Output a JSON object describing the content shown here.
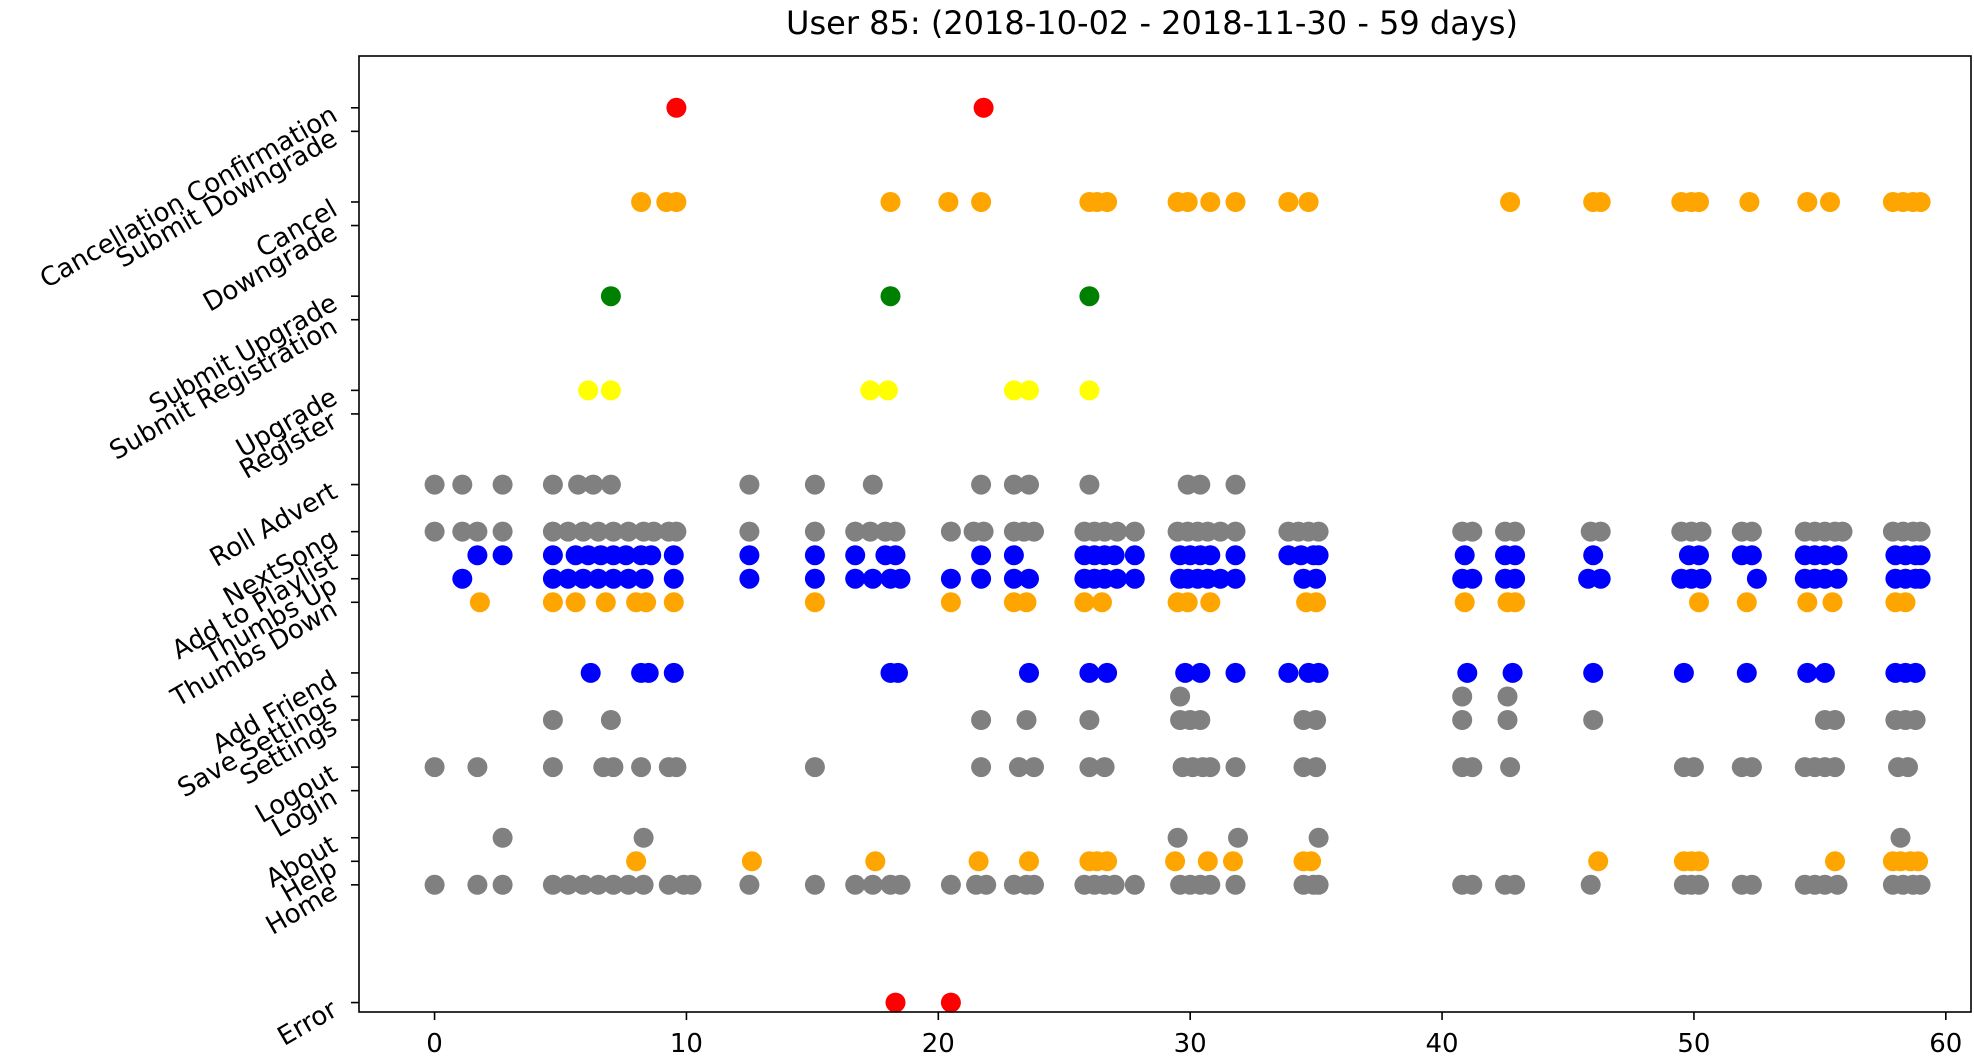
{
  "chart_data": {
    "type": "scatter",
    "title": "User 85:  (2018-10-02 - 2018-11-30 - 59 days)",
    "xlabel": "",
    "ylabel": "",
    "xlim": [
      -3,
      61
    ],
    "ylim": [
      -0.4,
      40.2
    ],
    "grid": false,
    "xticks": [
      0,
      10,
      20,
      30,
      40,
      50,
      60
    ],
    "yticks": [
      {
        "label": "Error",
        "y": 0
      },
      {
        "label": "Home",
        "y": 5
      },
      {
        "label": "Help",
        "y": 6
      },
      {
        "label": "About",
        "y": 7
      },
      {
        "label": "Login",
        "y": 9
      },
      {
        "label": "Logout",
        "y": 10
      },
      {
        "label": "Settings",
        "y": 12
      },
      {
        "label": "Save Settings",
        "y": 13
      },
      {
        "label": "Add Friend",
        "y": 14
      },
      {
        "label": "Thumbs Down",
        "y": 17
      },
      {
        "label": "Thumbs Up",
        "y": 18
      },
      {
        "label": "Add to Playlist",
        "y": 19
      },
      {
        "label": "NextSong",
        "y": 20
      },
      {
        "label": "Roll Advert",
        "y": 22
      },
      {
        "label": "Register",
        "y": 25
      },
      {
        "label": "Upgrade",
        "y": 26
      },
      {
        "label": "Submit Registration",
        "y": 29
      },
      {
        "label": "Submit Upgrade",
        "y": 30
      },
      {
        "label": "Downgrade",
        "y": 33
      },
      {
        "label": "Cancel",
        "y": 34
      },
      {
        "label": "Submit Downgrade",
        "y": 37
      },
      {
        "label": "Cancellation Confirmation",
        "y": 38
      }
    ],
    "series": [
      {
        "label": "Error",
        "y": 0,
        "color": "#ff0000",
        "x": [
          18.3,
          20.5
        ]
      },
      {
        "label": "Home",
        "y": 5,
        "color": "#808080",
        "x": [
          0,
          1.7,
          2.7,
          4.7,
          5.3,
          5.9,
          6.5,
          7.1,
          7.7,
          8.3,
          9.3,
          9.9,
          10.2,
          12.5,
          15.1,
          16.7,
          17.4,
          18.1,
          18.5,
          20.5,
          21.5,
          21.9,
          23,
          23.5,
          23.8,
          25.8,
          26.2,
          26.6,
          27,
          27.8,
          29.6,
          30,
          30.4,
          30.8,
          31.8,
          34.5,
          34.9,
          35.1,
          40.8,
          41.2,
          42.5,
          42.9,
          45.9,
          49.6,
          49.9,
          50.2,
          51.9,
          52.3,
          54.4,
          54.8,
          55.2,
          55.7,
          57.9,
          58.3,
          58.7,
          59
        ]
      },
      {
        "label": "Help",
        "y": 6,
        "color": "#ffa500",
        "x": [
          8,
          12.6,
          17.5,
          21.6,
          23.6,
          26,
          26.3,
          26.7,
          29.4,
          30.7,
          31.7,
          34.5,
          34.8,
          46.2,
          49.6,
          49.9,
          50.2,
          55.6,
          57.9,
          58.2,
          58.6,
          58.9
        ]
      },
      {
        "label": "About",
        "y": 7,
        "color": "#808080",
        "x": [
          2.7,
          8.3,
          29.5,
          31.9,
          35.1,
          58.2
        ]
      },
      {
        "label": "Logout",
        "y": 10,
        "color": "#808080",
        "x": [
          0,
          1.7,
          4.7,
          6.7,
          7.1,
          8.2,
          9.3,
          9.6,
          15.1,
          21.7,
          23.2,
          23.8,
          26,
          26.6,
          29.7,
          30.1,
          30.5,
          30.8,
          31.8,
          34.5,
          35,
          40.8,
          41.2,
          42.7,
          49.6,
          50,
          51.9,
          52.3,
          54.4,
          54.8,
          55.2,
          55.6,
          58.1,
          58.5
        ]
      },
      {
        "label": "Settings",
        "y": 12,
        "color": "#808080",
        "x": [
          4.7,
          7,
          21.7,
          23.5,
          26,
          29.6,
          30,
          30.4,
          34.5,
          35,
          40.8,
          42.6,
          46,
          55.2,
          55.6,
          58,
          58.4,
          58.8
        ]
      },
      {
        "label": "Save Settings",
        "y": 13,
        "color": "#808080",
        "x": [
          29.6,
          40.8,
          42.6
        ]
      },
      {
        "label": "Add Friend",
        "y": 14,
        "color": "#0000ff",
        "x": [
          6.2,
          8.2,
          8.5,
          9.5,
          18.1,
          18.4,
          23.6,
          26,
          26.7,
          29.8,
          30.4,
          31.8,
          33.9,
          34.7,
          35.1,
          41,
          42.8,
          46,
          49.6,
          52.1,
          54.5,
          55.2,
          58,
          58.4,
          58.8
        ]
      },
      {
        "label": "Thumbs Down",
        "y": 17,
        "color": "#ffa500",
        "x": [
          1.8,
          4.7,
          5.6,
          6.8,
          8,
          8.4,
          9.5,
          15.1,
          20.5,
          23,
          23.5,
          25.8,
          26.5,
          29.5,
          29.9,
          30.8,
          34.6,
          35,
          40.9,
          42.6,
          42.9,
          50.2,
          52.1,
          54.5,
          55.5,
          58,
          58.4
        ]
      },
      {
        "label": "Thumbs Up",
        "y": 18,
        "color": "#0000ff",
        "x": [
          1.1,
          4.7,
          5.3,
          5.9,
          6.5,
          7.1,
          7.7,
          8.3,
          9.5,
          12.5,
          15.1,
          16.7,
          17.4,
          18.1,
          18.5,
          20.5,
          21.7,
          23,
          23.6,
          25.8,
          26.2,
          26.6,
          27.1,
          27.8,
          29.6,
          29.9,
          30.3,
          30.7,
          31.2,
          31.8,
          34.5,
          35,
          40.8,
          41.2,
          42.5,
          42.9,
          45.8,
          46.3,
          49.5,
          49.9,
          50.3,
          52.5,
          54.4,
          54.8,
          55.2,
          55.7,
          58,
          58.4,
          58.8,
          59
        ]
      },
      {
        "label": "Add to Playlist",
        "y": 19,
        "color": "#0000ff",
        "x": [
          1.7,
          2.7,
          4.7,
          5.6,
          6.1,
          6.6,
          7.1,
          7.6,
          8.2,
          8.6,
          9.5,
          12.5,
          15.1,
          16.7,
          17.9,
          18.3,
          21.7,
          23,
          25.8,
          26.2,
          26.6,
          27,
          27.8,
          29.6,
          30,
          30.4,
          30.8,
          31.8,
          33.9,
          34.4,
          34.9,
          35.1,
          40.9,
          42.5,
          42.9,
          46,
          49.8,
          50.2,
          51.9,
          52.3,
          54.4,
          54.8,
          55.2,
          55.7,
          58,
          58.4,
          58.8,
          59
        ]
      },
      {
        "label": "NextSong",
        "y": 20,
        "color": "#808080",
        "x": [
          0,
          1.1,
          1.7,
          2.7,
          4.7,
          5.3,
          5.9,
          6.5,
          7.1,
          7.7,
          8.3,
          8.7,
          9.3,
          9.6,
          12.5,
          15.1,
          16.7,
          17.3,
          17.9,
          18.3,
          20.5,
          21.4,
          21.8,
          23,
          23.4,
          23.8,
          25.8,
          26.2,
          26.6,
          27.1,
          27.8,
          29.5,
          29.9,
          30.3,
          30.7,
          31.2,
          31.8,
          33.9,
          34.3,
          34.7,
          35.1,
          40.8,
          41.2,
          42.5,
          42.9,
          45.9,
          46.3,
          49.5,
          49.9,
          50.3,
          51.9,
          52.3,
          54.4,
          54.8,
          55.2,
          55.6,
          55.9,
          57.9,
          58.3,
          58.7,
          59
        ]
      },
      {
        "label": "Roll Advert",
        "y": 22,
        "color": "#808080",
        "x": [
          0,
          1.1,
          2.7,
          4.7,
          5.7,
          6.3,
          7,
          12.5,
          15.1,
          17.4,
          21.7,
          23,
          23.6,
          26,
          29.9,
          30.4,
          31.8
        ]
      },
      {
        "label": "Upgrade",
        "y": 26,
        "color": "#ffff00",
        "x": [
          6.1,
          7,
          17.3,
          18,
          23,
          23.6,
          26
        ]
      },
      {
        "label": "Submit Upgrade",
        "y": 30,
        "color": "#008000",
        "x": [
          7,
          18.1,
          26
        ]
      },
      {
        "label": "Cancel",
        "y": 34,
        "color": "#ffa500",
        "x": [
          8.2,
          9.2,
          9.6,
          18.1,
          20.4,
          21.7,
          26,
          26.3,
          26.7,
          29.5,
          29.9,
          30.8,
          31.8,
          33.9,
          34.7,
          42.7,
          46,
          46.3,
          49.5,
          49.9,
          50.2,
          52.2,
          54.5,
          55.4,
          57.9,
          58.3,
          58.7,
          59
        ]
      },
      {
        "label": "Cancellation Confirmation",
        "y": 38,
        "color": "#ff0000",
        "x": [
          9.6,
          21.8
        ]
      }
    ]
  }
}
